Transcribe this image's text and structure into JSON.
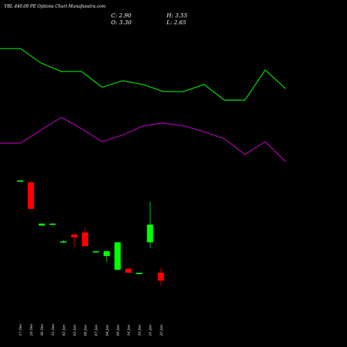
{
  "header": {
    "title": "VBL 440.00 PE Options Chart Munafasutra.com"
  },
  "ohlc": {
    "close": "C: 2.90",
    "open": "O: 3.30",
    "high": "H: 3.55",
    "low": "L: 2.65"
  },
  "colors": {
    "background": "#000000",
    "up": "#00ff00",
    "down": "#ff0000",
    "upper_band": "#00dd00",
    "lower_band": "#aa00aa"
  },
  "chart_data": {
    "type": "candlestick",
    "title": "VBL 440.00 PE Options Chart Munafasutra.com",
    "x": [
      "17 Dec",
      "24 Dec",
      "30 Dec",
      "31 Dec",
      "02 Jan",
      "03 Jan",
      "06 Jan",
      "07 Jan",
      "08 Jan",
      "09 Jan",
      "14 Jan",
      "16 Jan",
      "21 Jan",
      "22 Jan"
    ],
    "candles": [
      {
        "open": 8.0,
        "high": 8.0,
        "low": 8.0,
        "close": 8.0
      },
      {
        "open": 7.9,
        "high": 8.0,
        "low": 6.55,
        "close": 6.55
      },
      {
        "open": 5.7,
        "high": 5.8,
        "low": 5.7,
        "close": 5.8
      },
      {
        "open": 5.8,
        "high": 5.8,
        "low": 5.75,
        "close": 5.8
      },
      {
        "open": 4.9,
        "high": 4.95,
        "low": 4.8,
        "close": 4.9
      },
      {
        "open": 5.25,
        "high": 5.25,
        "low": 4.6,
        "close": 5.1
      },
      {
        "open": 5.35,
        "high": 5.6,
        "low": 4.65,
        "close": 4.65
      },
      {
        "open": 4.4,
        "high": 4.4,
        "low": 4.35,
        "close": 4.4
      },
      {
        "open": 4.15,
        "high": 4.4,
        "low": 3.85,
        "close": 4.4
      },
      {
        "open": 3.45,
        "high": 4.85,
        "low": 3.45,
        "close": 4.85
      },
      {
        "open": 3.5,
        "high": 3.55,
        "low": 3.3,
        "close": 3.3
      },
      {
        "open": 3.25,
        "high": 3.3,
        "low": 3.25,
        "close": 3.3
      },
      {
        "open": 4.85,
        "high": 6.9,
        "low": 4.55,
        "close": 5.75
      },
      {
        "open": 3.3,
        "high": 3.55,
        "low": 2.65,
        "close": 2.9
      }
    ],
    "upper_band": [
      22,
      22,
      21.0,
      20.4,
      20.4,
      19.3,
      19.75,
      19.5,
      19.0,
      19.0,
      19.5,
      18.4,
      18.4,
      20.5,
      19.2
    ],
    "lower_band": [
      15.4,
      15.4,
      16.3,
      17.2,
      16.4,
      15.5,
      15.95,
      16.6,
      16.8,
      16.6,
      16.2,
      15.7,
      14.6,
      15.5,
      14.1
    ],
    "band_x": [
      "",
      "17 Dec",
      "24 Dec",
      "30 Dec",
      "31 Dec",
      "02 Jan",
      "03 Jan",
      "06 Jan",
      "07 Jan",
      "08 Jan",
      "09 Jan",
      "14 Jan",
      "16 Jan",
      "21 Jan",
      "22 Jan"
    ]
  }
}
